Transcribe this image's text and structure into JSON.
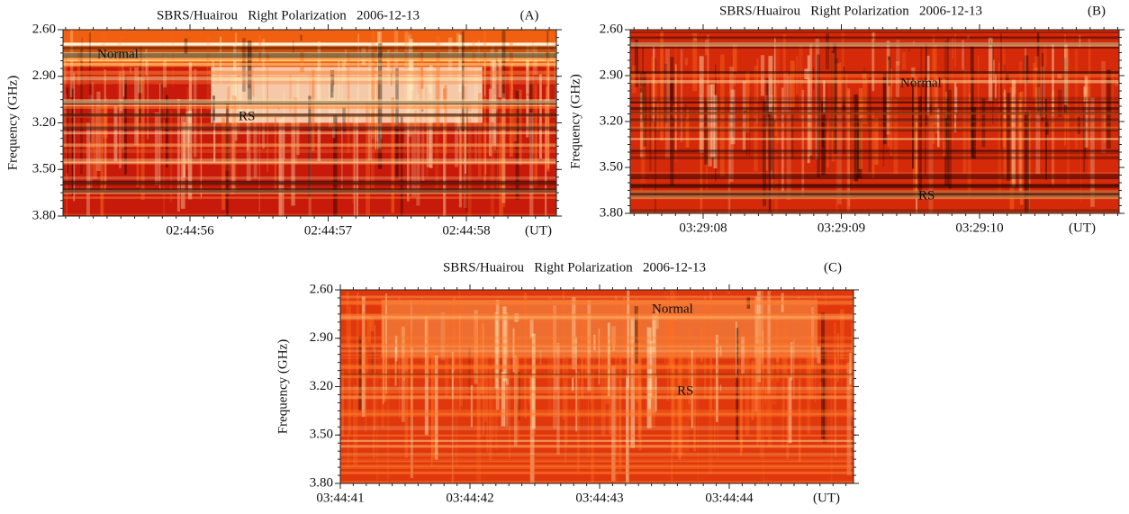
{
  "chart_data": [
    {
      "type": "spectrogram",
      "title": "SBRS/Huairou   Right Polarization   2006-12-13",
      "panel_label": "(A)",
      "y_label": "Frequency (GHz)",
      "x_unit": "(UT)",
      "ylim": [
        2.6,
        3.8
      ],
      "yticks": [
        {
          "value": 2.6,
          "label": "2.60"
        },
        {
          "value": 2.9,
          "label": "2.90"
        },
        {
          "value": 3.2,
          "label": "3.20"
        },
        {
          "value": 3.5,
          "label": "3.50"
        },
        {
          "value": 3.8,
          "label": "3.80"
        }
      ],
      "xticks": [
        "02:44:56",
        "02:44:57",
        "02:44:58"
      ],
      "annotations": [
        "Normal",
        "RS"
      ]
    },
    {
      "type": "spectrogram",
      "title": "SBRS/Huairou   Right Polarization   2006-12-13",
      "panel_label": "(B)",
      "y_label": "Frequency (GHz)",
      "x_unit": "(UT)",
      "ylim": [
        2.6,
        3.8
      ],
      "yticks": [
        {
          "value": 2.6,
          "label": "2.60"
        },
        {
          "value": 2.9,
          "label": "2.90"
        },
        {
          "value": 3.2,
          "label": "3.20"
        },
        {
          "value": 3.5,
          "label": "3.50"
        },
        {
          "value": 3.8,
          "label": "3.80"
        }
      ],
      "xticks": [
        "03:29:08",
        "03:29:09",
        "03:29:10"
      ],
      "annotations": [
        "Normal",
        "RS"
      ]
    },
    {
      "type": "spectrogram",
      "title": "SBRS/Huairou   Right Polarization   2006-12-13",
      "panel_label": "(C)",
      "y_label": "Frequency (GHz)",
      "x_unit": "(UT)",
      "ylim": [
        2.6,
        3.8
      ],
      "yticks": [
        {
          "value": 2.6,
          "label": "2.60"
        },
        {
          "value": 2.9,
          "label": "2.90"
        },
        {
          "value": 3.2,
          "label": "3.20"
        },
        {
          "value": 3.5,
          "label": "3.50"
        },
        {
          "value": 3.8,
          "label": "3.80"
        }
      ],
      "xticks": [
        "03:44:41",
        "03:44:42",
        "03:44:43",
        "03:44:44"
      ],
      "annotations": [
        "Normal",
        "RS"
      ]
    }
  ]
}
